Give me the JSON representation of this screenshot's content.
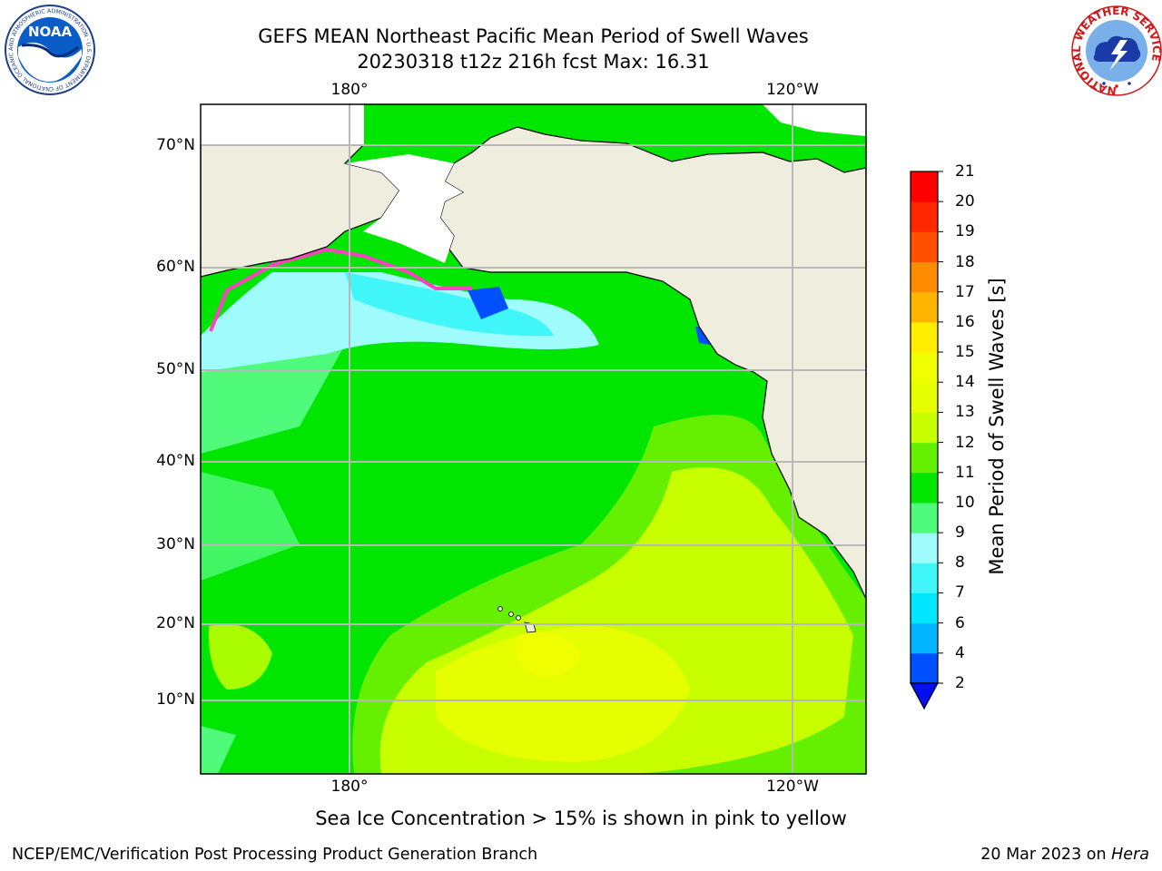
{
  "title": {
    "line1": "GEFS MEAN Northeast Pacific Mean Period of Swell Waves",
    "line2": "20230318 t12z 216h fcst   Max: 16.31"
  },
  "map": {
    "lon_labels": [
      "180°",
      "120°W"
    ],
    "lat_labels": [
      "70°N",
      "60°N",
      "50°N",
      "40°N",
      "30°N",
      "20°N",
      "10°N"
    ],
    "land_color": "#efedde",
    "grid_color": "#b8b8b8"
  },
  "colorbar": {
    "title": "Mean Period of Swell Waves [s]",
    "ticks": [
      "2",
      "4",
      "6",
      "7",
      "8",
      "9",
      "10",
      "11",
      "12",
      "13",
      "14",
      "15",
      "16",
      "17",
      "18",
      "19",
      "20",
      "21"
    ],
    "colors": [
      "#0050ff",
      "#00b4ff",
      "#00e6ff",
      "#40f6f8",
      "#a0fcfc",
      "#50fa7a",
      "#00e600",
      "#64f000",
      "#c8ff00",
      "#e6ff00",
      "#f0ff00",
      "#ffee00",
      "#ffb400",
      "#ff8c00",
      "#ff5000",
      "#ff2800",
      "#ff0000"
    ],
    "extend_color": "#0010f0"
  },
  "note": "Sea Ice Concentration > 15% is shown in pink to yellow",
  "footer": {
    "left": "NCEP/EMC/Verification Post Processing Product Generation Branch",
    "right_date": "20 Mar 2023 on",
    "right_machine": "Hera"
  },
  "logos": {
    "noaa_text": "NOAA",
    "noaa_ring": "NATIONAL OCEANIC AND ATMOSPHERIC ADMINISTRATION · U.S. DEPARTMENT OF COMMERCE",
    "nws_ring": "NATIONAL WEATHER SERVICE"
  }
}
